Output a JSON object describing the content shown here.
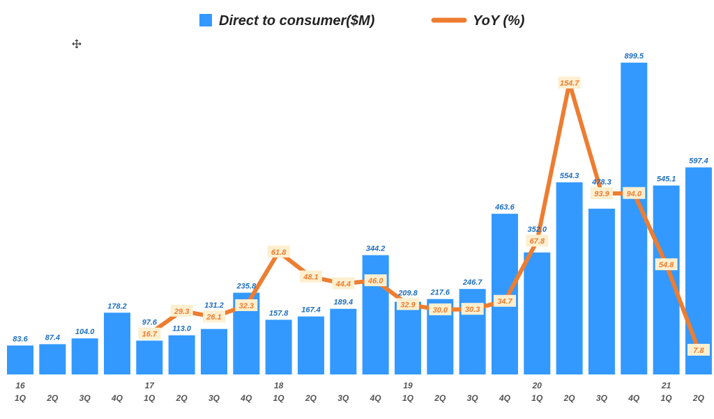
{
  "chart_data": {
    "type": "bar+line",
    "title": "",
    "legend": {
      "placement": "top-center"
    },
    "grid": false,
    "year_labels": [
      "16",
      "",
      "",
      "",
      "17",
      "",
      "",
      "",
      "18",
      "",
      "",
      "",
      "19",
      "",
      "",
      "",
      "20",
      "",
      "",
      "",
      "21",
      ""
    ],
    "categories": [
      "1Q",
      "2Q",
      "3Q",
      "4Q",
      "1Q",
      "2Q",
      "3Q",
      "4Q",
      "1Q",
      "2Q",
      "3Q",
      "4Q",
      "1Q",
      "2Q",
      "3Q",
      "4Q",
      "1Q",
      "2Q",
      "3Q",
      "4Q",
      "1Q",
      "2Q"
    ],
    "series": [
      {
        "name": "Direct to consumer($M)",
        "type": "bar",
        "axis": "primary",
        "color": "#3399ff",
        "label_color": "#1f6fc0",
        "values": [
          83.6,
          87.4,
          104.0,
          178.2,
          97.6,
          113.0,
          131.2,
          235.8,
          157.8,
          167.4,
          189.4,
          344.2,
          209.8,
          217.6,
          246.7,
          463.6,
          352.0,
          554.3,
          478.3,
          899.5,
          545.1,
          597.4
        ]
      },
      {
        "name": "YoY (%)",
        "type": "line",
        "axis": "secondary",
        "color": "#ed7d31",
        "label_bg": "#fdefcf",
        "values": [
          null,
          null,
          null,
          null,
          16.7,
          29.3,
          26.1,
          32.3,
          61.8,
          48.1,
          44.4,
          46.0,
          32.9,
          30.0,
          30.3,
          34.7,
          67.8,
          154.7,
          93.9,
          94.0,
          54.8,
          7.8
        ]
      }
    ],
    "ylim": [
      0,
      1000
    ],
    "y2lim": [
      -5.6,
      185
    ]
  }
}
